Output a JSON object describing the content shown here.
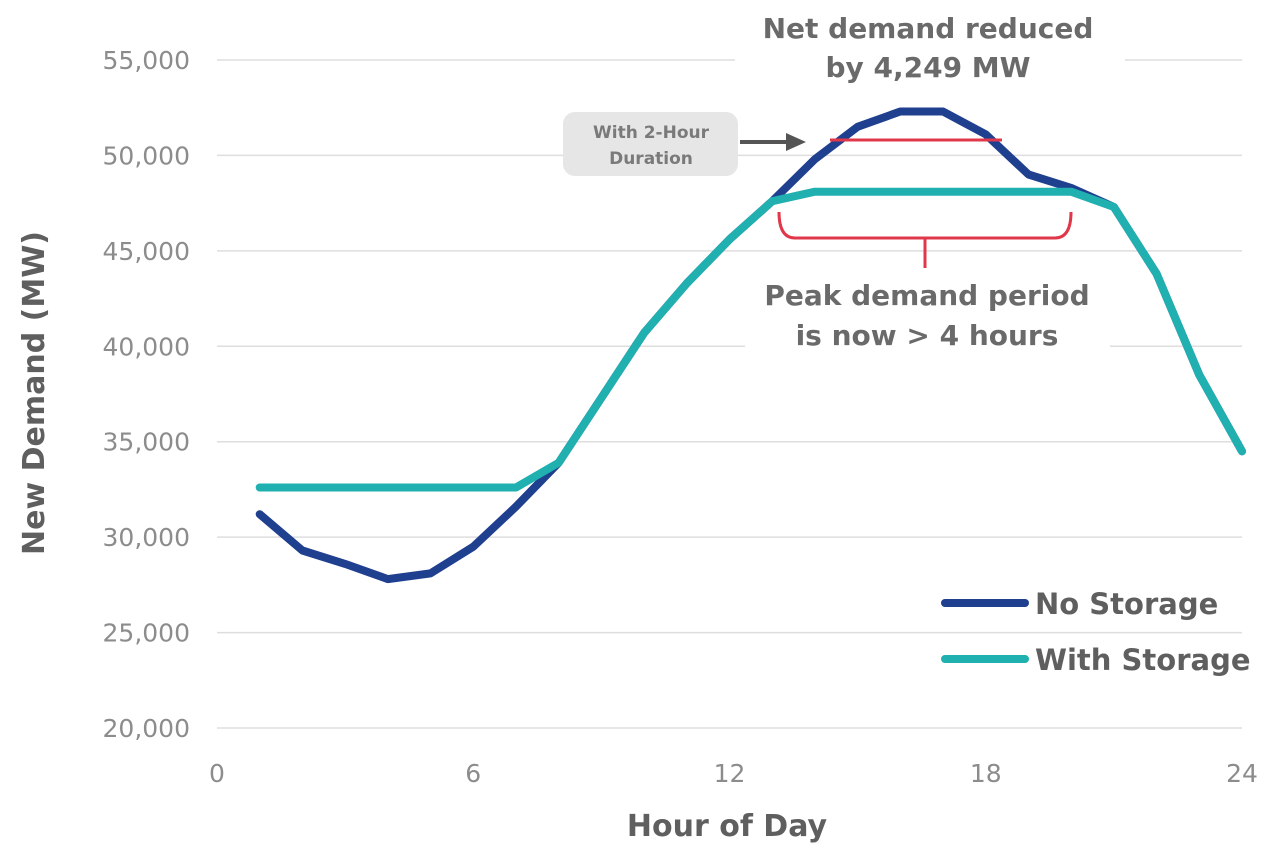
{
  "chart_data": {
    "type": "line",
    "title": "",
    "xlabel": "Hour of Day",
    "ylabel": "New Demand (MW)",
    "xlim": [
      0,
      24
    ],
    "ylim": [
      20000,
      55000
    ],
    "xticks": [
      "0",
      "6",
      "12",
      "18",
      "24"
    ],
    "yticks": [
      "20,000",
      "25,000",
      "30,000",
      "35,000",
      "40,000",
      "45,000",
      "50,000",
      "55,000"
    ],
    "grid": "horizontal",
    "legend_position": "bottom-right",
    "x": [
      1,
      2,
      3,
      4,
      5,
      6,
      7,
      8,
      9,
      10,
      11,
      12,
      13,
      14,
      15,
      16,
      17,
      18,
      19,
      20,
      21,
      22,
      23,
      24
    ],
    "series": [
      {
        "name": "No Storage",
        "color": "#1f3f8f",
        "values": [
          31200,
          29300,
          28600,
          27800,
          28100,
          29500,
          31600,
          33900,
          37300,
          40700,
          43300,
          45600,
          47600,
          49800,
          51500,
          52300,
          52300,
          51100,
          49000,
          48300,
          47300,
          43800,
          38500,
          34500
        ]
      },
      {
        "name": "With Storage",
        "color": "#20b0b0",
        "values": [
          32600,
          32600,
          32600,
          32600,
          32600,
          32600,
          32600,
          33900,
          37300,
          40700,
          43300,
          45600,
          47600,
          48100,
          48100,
          48100,
          48100,
          48100,
          48100,
          48100,
          47300,
          43800,
          38500,
          34500
        ]
      }
    ],
    "annotations": {
      "net_demand_line1": "Net demand reduced",
      "net_demand_line2": "by 4,249 MW",
      "duration_box_line1": "With 2-Hour",
      "duration_box_line2": "Duration",
      "peak_period_line1": "Peak demand period",
      "peak_period_line2": "is now > 4 hours"
    },
    "annotation_colors": {
      "reduction_marker": "#e0384a",
      "arrow": "#555555",
      "box_fill": "#e6e6e6"
    }
  }
}
